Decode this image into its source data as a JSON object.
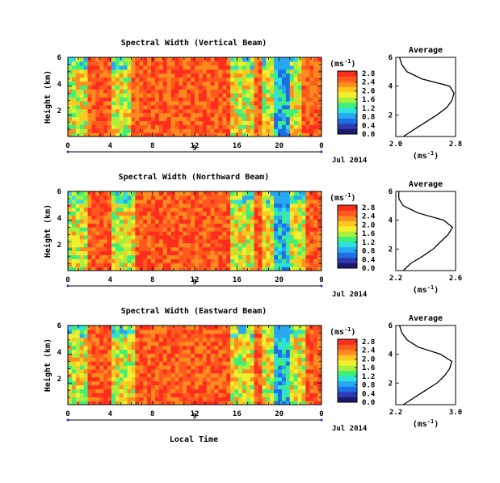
{
  "panels": [
    {
      "title": "Spectral Width (Vertical Beam)",
      "avg_title": "Average",
      "avg_x_ticks": [
        "2.0",
        "2.8"
      ],
      "avg_x_range": [
        2.0,
        2.8
      ]
    },
    {
      "title": "Spectral Width (Northward Beam)",
      "avg_title": "Average",
      "avg_x_ticks": [
        "2.2",
        "2.6"
      ],
      "avg_x_range": [
        2.2,
        2.6
      ]
    },
    {
      "title": "Spectral Width (Eastward Beam)",
      "avg_title": "Average",
      "avg_x_ticks": [
        "2.2",
        "3.0"
      ],
      "avg_x_range": [
        2.2,
        3.0
      ]
    }
  ],
  "y_axis_label": "Height (km)",
  "y_ticks": [
    "2",
    "4",
    "6"
  ],
  "avg_y_ticks": [
    "2",
    "4",
    "6"
  ],
  "x_ticks": [
    "0",
    "4",
    "8",
    "12",
    "16",
    "20",
    "0"
  ],
  "date_mid": "9",
  "date_label": "Jul 2014",
  "x_axis_label": "Local Time",
  "colorbar": {
    "unit_label": "(ms",
    "unit_sup": "-1",
    "unit_close": ")",
    "ticks": [
      "0.0",
      "0.4",
      "0.8",
      "1.2",
      "1.6",
      "2.0",
      "2.4",
      "2.8"
    ]
  },
  "avg_unit": {
    "label": "(ms",
    "sup": "-1",
    "close": ")"
  },
  "colors": {
    "high": "#ff3a1e",
    "mid": "#ffd21a",
    "low": "#1e6ee6",
    "colorbar": [
      "#1a1a6e",
      "#2e3cb0",
      "#1e6ee6",
      "#27a8f0",
      "#2ee0e0",
      "#3ef07a",
      "#a8f03a",
      "#f0f030",
      "#ffc81e",
      "#ff8c1e",
      "#ff5a1e",
      "#ff2d1e"
    ]
  },
  "chart_data": [
    {
      "type": "heatmap",
      "title": "Spectral Width (Vertical Beam)",
      "xlabel": "",
      "ylabel": "Height (km)",
      "x_range": [
        0,
        24
      ],
      "y_range": [
        0.5,
        6
      ],
      "dominant_high_intervals": [
        [
          2,
          4.2
        ],
        [
          6,
          15.5
        ],
        [
          17.5,
          18.5
        ],
        [
          22,
          24
        ]
      ],
      "low_intervals": [
        [
          19.5,
          21
        ]
      ],
      "average_profile": {
        "xlabel": "(ms-1)",
        "xlim": [
          2.0,
          2.8
        ],
        "height": [
          0.5,
          1,
          1.5,
          2,
          2.5,
          3,
          3.5,
          4,
          4.5,
          5,
          5.5,
          6
        ],
        "value": [
          2.1,
          2.25,
          2.4,
          2.55,
          2.68,
          2.75,
          2.78,
          2.72,
          2.35,
          2.15,
          2.08,
          2.05
        ]
      }
    },
    {
      "type": "heatmap",
      "title": "Spectral Width (Northward Beam)",
      "xlabel": "",
      "ylabel": "Height (km)",
      "x_range": [
        0,
        24
      ],
      "y_range": [
        0.5,
        6
      ],
      "dominant_high_intervals": [
        [
          2,
          4.2
        ],
        [
          6.5,
          15.5
        ],
        [
          17.5,
          18.5
        ],
        [
          22.5,
          24
        ]
      ],
      "low_intervals": [
        [
          19.5,
          21
        ]
      ],
      "average_profile": {
        "xlabel": "(ms-1)",
        "xlim": [
          2.2,
          2.6
        ],
        "height": [
          0.5,
          1,
          1.5,
          2,
          2.5,
          3,
          3.5,
          4,
          4.5,
          5,
          5.5,
          6
        ],
        "value": [
          2.25,
          2.3,
          2.38,
          2.45,
          2.5,
          2.55,
          2.58,
          2.52,
          2.35,
          2.25,
          2.22,
          2.22
        ]
      }
    },
    {
      "type": "heatmap",
      "title": "Spectral Width (Eastward Beam)",
      "xlabel": "Local Time",
      "ylabel": "Height (km)",
      "x_range": [
        0,
        24
      ],
      "y_range": [
        0.5,
        6
      ],
      "dominant_high_intervals": [
        [
          2,
          4
        ],
        [
          6.5,
          15.5
        ],
        [
          17.5,
          18.5
        ],
        [
          22.5,
          24
        ]
      ],
      "low_intervals": [
        [
          19.5,
          21
        ]
      ],
      "average_profile": {
        "xlabel": "(ms-1)",
        "xlim": [
          2.2,
          3.0
        ],
        "height": [
          0.5,
          1,
          1.5,
          2,
          2.5,
          3,
          3.5,
          4,
          4.5,
          5,
          5.5,
          6
        ],
        "value": [
          2.3,
          2.45,
          2.6,
          2.75,
          2.85,
          2.92,
          2.95,
          2.8,
          2.5,
          2.35,
          2.28,
          2.25
        ]
      }
    }
  ]
}
